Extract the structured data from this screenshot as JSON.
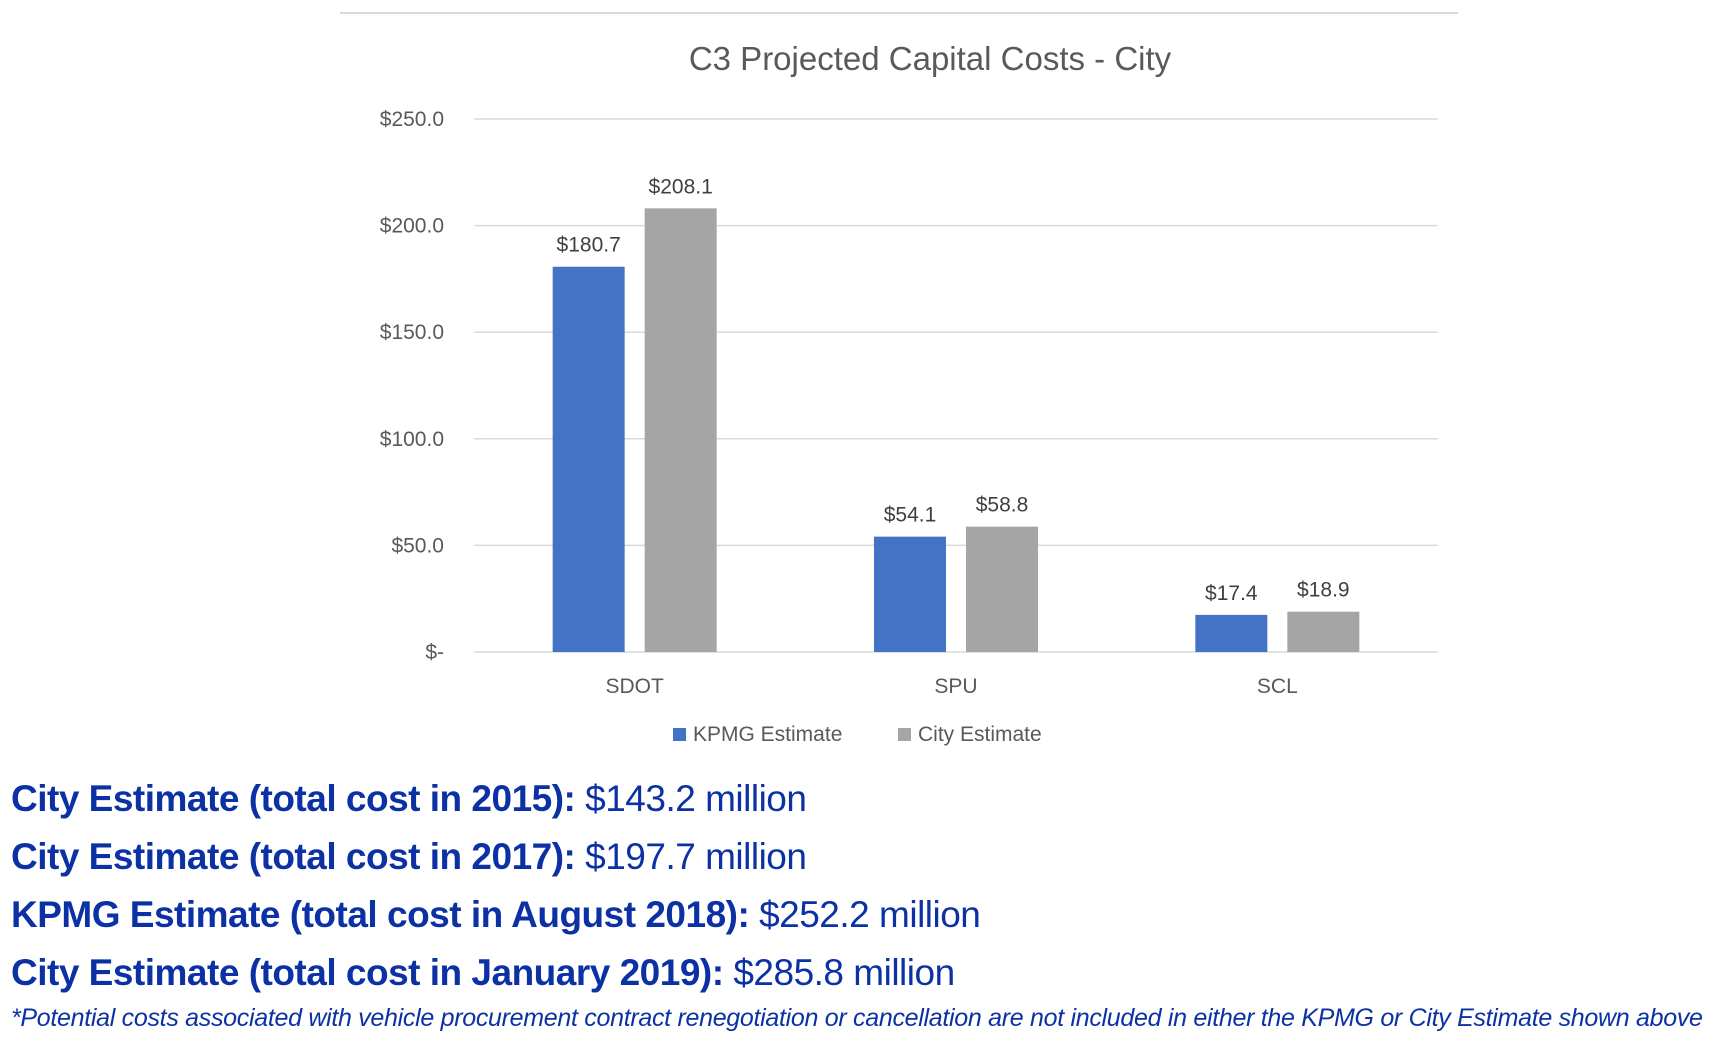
{
  "chart_data": {
    "type": "bar",
    "title": "C3 Projected Capital Costs - City",
    "categories": [
      "SDOT",
      "SPU",
      "SCL"
    ],
    "series": [
      {
        "name": "KPMG Estimate",
        "values": [
          180.7,
          54.1,
          17.4
        ],
        "labels": [
          "$180.7",
          "$54.1",
          "$17.4"
        ],
        "color": "#4472c4"
      },
      {
        "name": "City Estimate",
        "values": [
          208.1,
          58.8,
          18.9
        ],
        "labels": [
          "$208.1",
          "$58.8",
          "$18.9"
        ],
        "color": "#a5a5a5"
      }
    ],
    "ylim": [
      0,
      250
    ],
    "yticks": [
      0,
      50,
      100,
      150,
      200,
      250
    ],
    "ytick_labels": [
      "$-",
      "$50.0",
      "$100.0",
      "$150.0",
      "$200.0",
      "$250.0"
    ],
    "grid": true,
    "legend": "bottom"
  },
  "summary": [
    {
      "label": "City Estimate (total cost in 2015):",
      "value": " $143.2 million"
    },
    {
      "label": "City Estimate (total cost in 2017):",
      "value": " $197.7 million"
    },
    {
      "label": "KPMG Estimate (total cost in August 2018):",
      "value": " $252.2 million"
    },
    {
      "label": "City Estimate (total cost in January 2019):",
      "value": " $285.8 million"
    }
  ],
  "footnote": "*Potential costs associated with vehicle procurement contract renegotiation or cancellation are not included in either the KPMG or City Estimate shown above",
  "colors": {
    "text_blue": "#0b31a5",
    "axis_text": "#595959",
    "grid": "#d9d9d9"
  }
}
